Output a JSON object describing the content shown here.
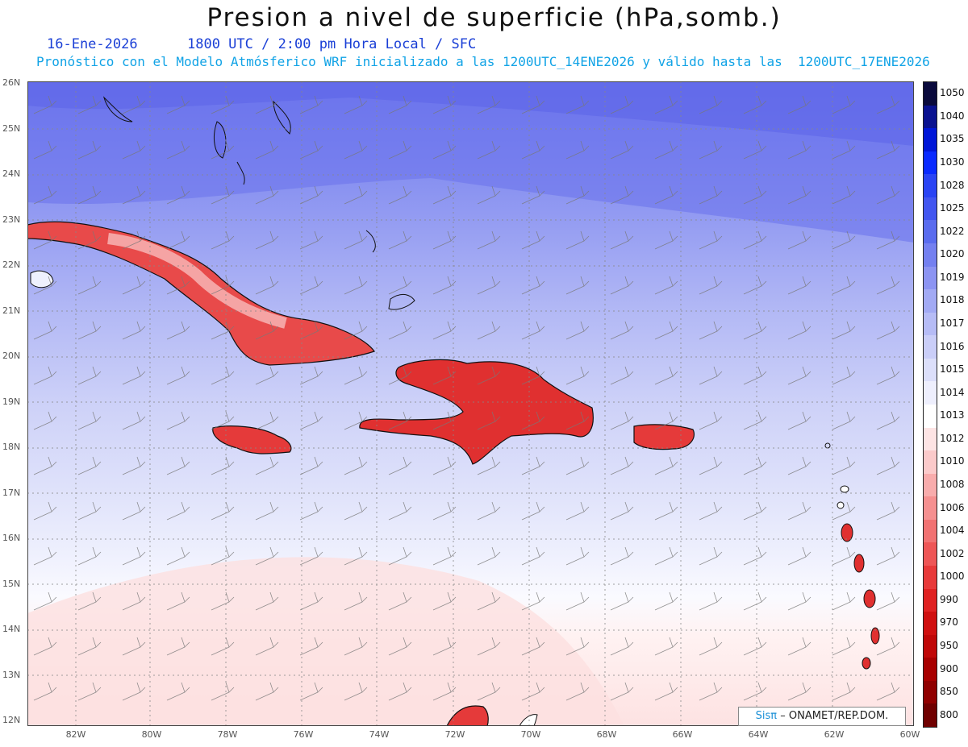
{
  "title": "Presion a nivel de superficie (hPa,somb.)",
  "date_line": "16-Ene-2026      1800 UTC / 2:00 pm Hora Local / SFC",
  "model_line": "Pronóstico con el Modelo Atmósferico WRF inicializado a las 1200UTC_14ENE2026 y válido hasta las  1200UTC_17ENE2026",
  "lat_labels": [
    "26N",
    "25N",
    "24N",
    "23N",
    "22N",
    "21N",
    "20N",
    "19N",
    "18N",
    "17N",
    "16N",
    "15N",
    "14N",
    "13N",
    "12N"
  ],
  "lon_labels": [
    "82W",
    "80W",
    "78W",
    "76W",
    "74W",
    "72W",
    "70W",
    "68W",
    "66W",
    "64W",
    "62W",
    "60W"
  ],
  "colorbar": {
    "labels": [
      "1050",
      "1040",
      "1035",
      "1030",
      "1028",
      "1025",
      "1022",
      "1020",
      "1019",
      "1018",
      "1017",
      "1016",
      "1015",
      "1014",
      "1013",
      "1012",
      "1010",
      "1008",
      "1006",
      "1004",
      "1002",
      "1000",
      "990",
      "970",
      "950",
      "900",
      "850",
      "800"
    ],
    "colors": [
      "#0a0a3c",
      "#0a1290",
      "#0016d8",
      "#0a2aff",
      "#2a44f4",
      "#4256f0",
      "#5a6cee",
      "#7480f0",
      "#8c94f2",
      "#a2aaf4",
      "#b6bcf6",
      "#cacef8",
      "#dcdffa",
      "#eeeffd",
      "#ffffff",
      "#fde4e4",
      "#fbcaca",
      "#f8acac",
      "#f59090",
      "#f17272",
      "#ee5656",
      "#e83a3a",
      "#e02222",
      "#d01010",
      "#c00808",
      "#a80000",
      "#900000",
      "#700000"
    ]
  },
  "credit": {
    "brand": "Sisπ",
    "text": "– ONAMET/REP.DOM."
  }
}
